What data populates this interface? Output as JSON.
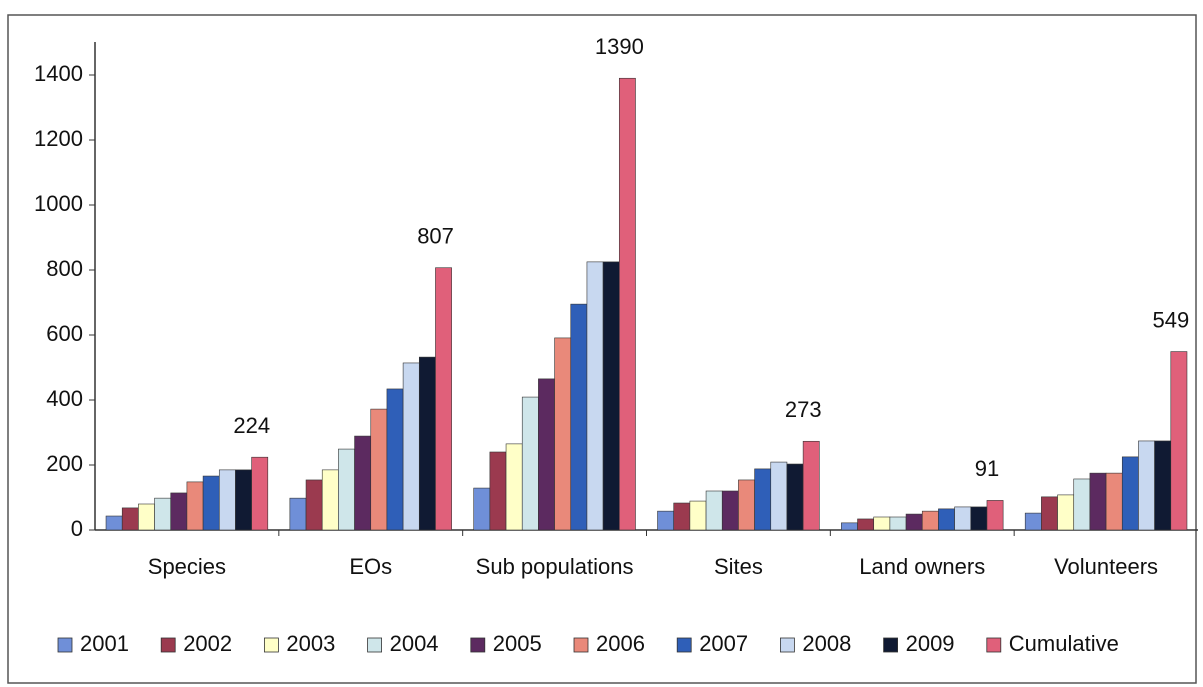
{
  "chart_data": {
    "type": "bar",
    "categories": [
      "Species",
      "EOs",
      "Sub populations",
      "Sites",
      "Land owners",
      "Volunteers"
    ],
    "series": [
      {
        "name": "2001",
        "color": "#6f8fd8",
        "values": [
          43,
          98,
          129,
          58,
          22,
          52
        ]
      },
      {
        "name": "2002",
        "color": "#9b3a4f",
        "values": [
          68,
          154,
          240,
          83,
          34,
          102
        ]
      },
      {
        "name": "2003",
        "color": "#ffffc8",
        "values": [
          80,
          185,
          265,
          89,
          40,
          108
        ]
      },
      {
        "name": "2004",
        "color": "#cfe6ea",
        "values": [
          98,
          249,
          409,
          120,
          40,
          157
        ]
      },
      {
        "name": "2005",
        "color": "#5c2a60",
        "values": [
          114,
          289,
          465,
          120,
          49,
          175
        ]
      },
      {
        "name": "2006",
        "color": "#e9897a",
        "values": [
          148,
          372,
          591,
          154,
          58,
          175
        ]
      },
      {
        "name": "2007",
        "color": "#2f5fb8",
        "values": [
          166,
          434,
          695,
          188,
          65,
          225
        ]
      },
      {
        "name": "2008",
        "color": "#c8d8f0",
        "values": [
          185,
          514,
          825,
          209,
          71,
          274
        ]
      },
      {
        "name": "2009",
        "color": "#101a33",
        "values": [
          185,
          532,
          825,
          203,
          71,
          274
        ]
      },
      {
        "name": "Cumulative",
        "color": "#e0607a",
        "values": [
          224,
          807,
          1390,
          273,
          91,
          549
        ],
        "data_labels": true
      }
    ],
    "ylim": [
      0,
      1500
    ],
    "yticks": [
      0,
      200,
      400,
      600,
      800,
      1000,
      1200,
      1400
    ],
    "grid": false
  }
}
